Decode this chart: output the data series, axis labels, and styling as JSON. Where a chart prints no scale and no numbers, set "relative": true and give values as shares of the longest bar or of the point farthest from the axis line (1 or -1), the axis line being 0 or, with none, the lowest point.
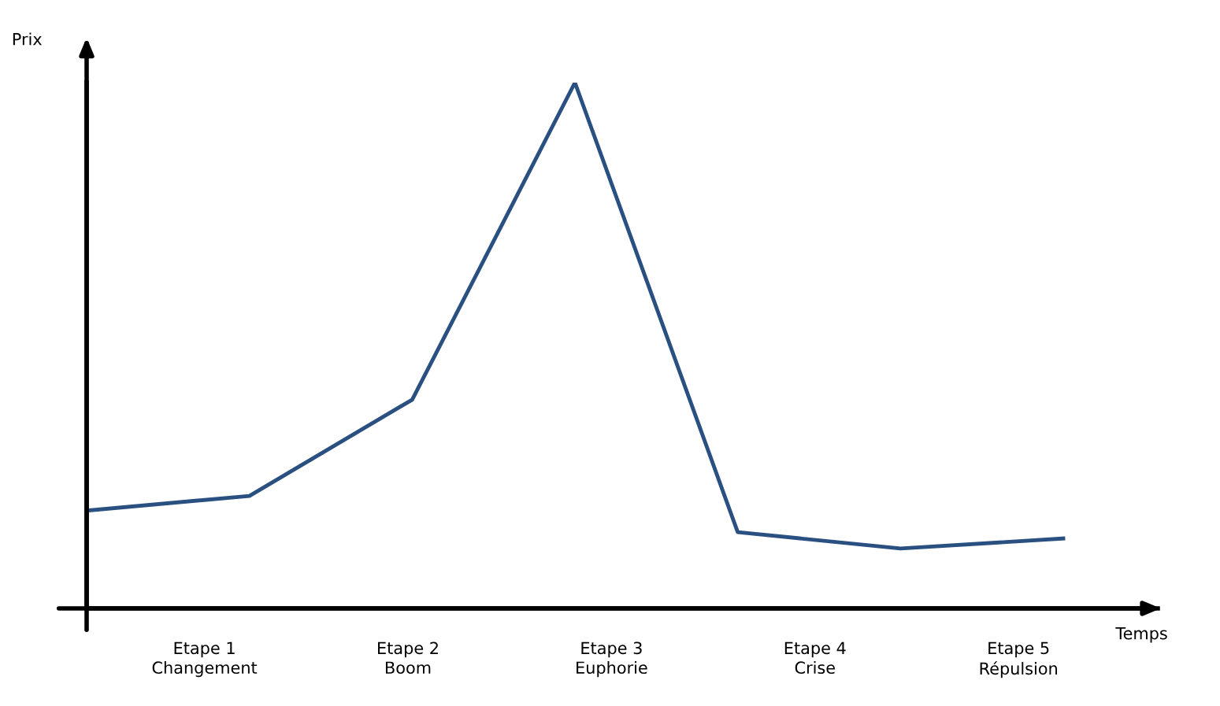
{
  "chart_data": {
    "type": "line",
    "relative": true,
    "xlabel": "Temps",
    "ylabel": "Prix",
    "categories": [
      null,
      null,
      null,
      null,
      null,
      null,
      null
    ],
    "values": [
      0.186,
      0.214,
      0.397,
      1,
      0.145,
      0.114,
      0.133
    ],
    "color": "#2a5082",
    "annotations": [
      "Etape 1\nChangement",
      "Etape 2\nBoom",
      "Etape 3\nEuphorie",
      "Etape 4\nCrise",
      "Etape 5\nRépulsion"
    ],
    "grid": false,
    "legend": false,
    "marker": "none",
    "line_style": "solid"
  }
}
